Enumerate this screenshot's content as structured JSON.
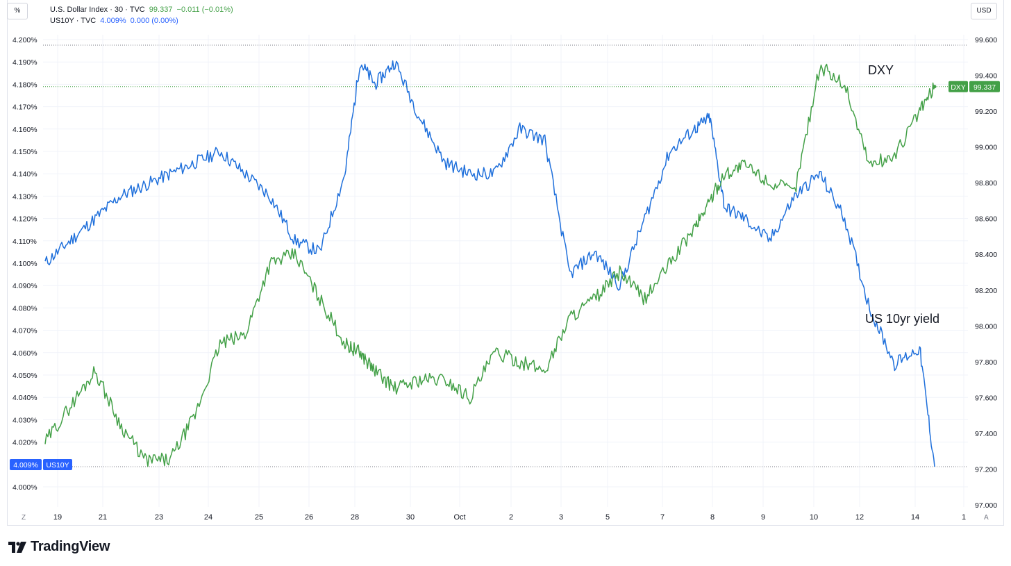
{
  "header": {
    "dxy_name": "U.S. Dollar Index · 30 · TVC",
    "dxy_value": "99.337",
    "dxy_change": "−0.011 (−0.01%)",
    "us10y_name": "US10Y · TVC",
    "us10y_value": "4.009%",
    "us10y_change": "0.000 (0.00%)"
  },
  "buttons": {
    "left_unit": "%",
    "right_unit": "USD"
  },
  "corners": {
    "left": "Z",
    "right": "A"
  },
  "badges": {
    "us10y_value": "4.009%",
    "us10y_tag": "US10Y",
    "dxy_tag": "DXY",
    "dxy_value": "99.337"
  },
  "brand": {
    "name": "TradingView"
  },
  "colors": {
    "dxy": "#43a047",
    "us10y": "#2962ff",
    "us10y_line": "#1e6fdb",
    "grid": "#f0f3fa"
  },
  "chart_data": {
    "type": "line",
    "x_ticks": [
      "19",
      "21",
      "23",
      "24",
      "25",
      "26",
      "28",
      "30",
      "Oct",
      "2",
      "3",
      "5",
      "7",
      "8",
      "9",
      "10",
      "12",
      "14",
      "1"
    ],
    "left_axis": {
      "unit": "%",
      "ylim": [
        3.995,
        4.2
      ],
      "ticks": [
        "4.200%",
        "4.190%",
        "4.180%",
        "4.170%",
        "4.160%",
        "4.150%",
        "4.140%",
        "4.130%",
        "4.120%",
        "4.110%",
        "4.100%",
        "4.090%",
        "4.080%",
        "4.070%",
        "4.060%",
        "4.050%",
        "4.040%",
        "4.030%",
        "4.020%",
        "4.000%"
      ]
    },
    "right_axis": {
      "unit": "USD",
      "ylim": [
        97.0,
        99.6
      ],
      "ticks": [
        "99.600",
        "99.400",
        "99.200",
        "99.000",
        "98.800",
        "98.600",
        "98.400",
        "98.200",
        "98.000",
        "97.800",
        "97.600",
        "97.400",
        "97.200",
        "97.000"
      ]
    },
    "grid": true,
    "annotations": [
      "DXY",
      "US 10yr yield"
    ],
    "series": [
      {
        "name": "US10Y",
        "axis": "left",
        "color": "#1e6fdb",
        "x": [
          0,
          0.5,
          1,
          1.5,
          2,
          2.5,
          3,
          3.5,
          4,
          4.5,
          5,
          5.5,
          6,
          6.3,
          6.6,
          7,
          7.5,
          8,
          8.5,
          9,
          9.5,
          10,
          10.5,
          11,
          11.5,
          12,
          12.5,
          13,
          13.3,
          13.6,
          14,
          14.5,
          15,
          15.5,
          16,
          16.5,
          17,
          17.5,
          17.8
        ],
        "y": [
          4.1,
          4.11,
          4.12,
          4.13,
          4.135,
          4.14,
          4.145,
          4.15,
          4.14,
          4.13,
          4.11,
          4.105,
          4.14,
          4.19,
          4.18,
          4.19,
          4.165,
          4.145,
          4.14,
          4.14,
          4.16,
          4.155,
          4.095,
          4.105,
          4.09,
          4.12,
          4.15,
          4.16,
          4.165,
          4.125,
          4.12,
          4.11,
          4.13,
          4.14,
          4.12,
          4.08,
          4.055,
          4.062,
          4.009
        ]
      },
      {
        "name": "DXY",
        "axis": "right",
        "color": "#43a047",
        "x": [
          0,
          0.5,
          1,
          1.5,
          2,
          2.5,
          3,
          3.5,
          4,
          4.5,
          5,
          5.5,
          6,
          6.3,
          6.6,
          7,
          7.5,
          8,
          8.5,
          9,
          9.5,
          10,
          10.5,
          11,
          11.5,
          12,
          12.5,
          13,
          13.3,
          13.6,
          14,
          14.5,
          15,
          15.5,
          16,
          16.5,
          17,
          17.5,
          17.8
        ],
        "y": [
          97.35,
          97.55,
          97.75,
          97.45,
          97.25,
          97.25,
          97.5,
          97.9,
          97.95,
          98.35,
          98.4,
          98.15,
          97.9,
          97.85,
          97.75,
          97.65,
          97.7,
          97.7,
          97.6,
          97.85,
          97.8,
          97.75,
          98.05,
          98.15,
          98.3,
          98.15,
          98.35,
          98.55,
          98.7,
          98.85,
          98.9,
          98.8,
          98.75,
          99.45,
          99.35,
          98.9,
          98.95,
          99.2,
          99.337
        ]
      }
    ]
  }
}
